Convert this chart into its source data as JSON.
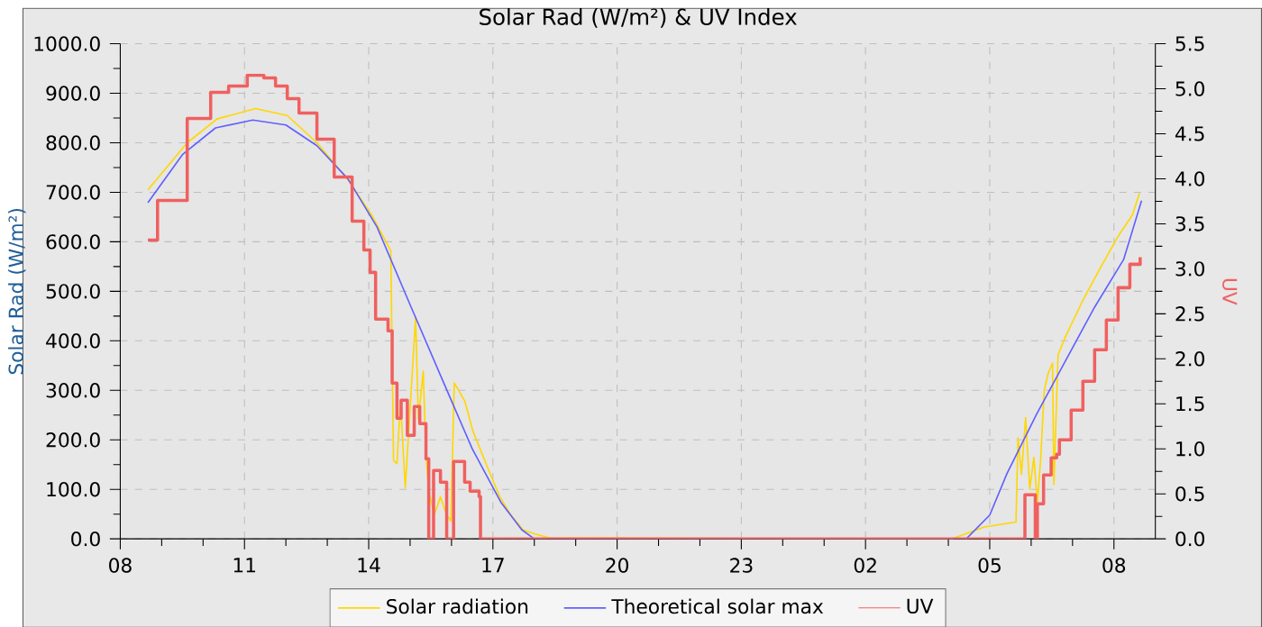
{
  "chart_data": {
    "type": "line",
    "title": "Solar Rad (W/m²) &  UV Index",
    "ylabel": "Solar Rad (W/m²)",
    "y2label": "UV",
    "xlim": [
      "--01-01T08:00",
      "--01-02T09:00"
    ],
    "xticks": [
      {
        "value": "--01-01T08:00",
        "label": "08"
      },
      {
        "value": "--01-01T11:00",
        "label": "11"
      },
      {
        "value": "--01-01T14:00",
        "label": "14"
      },
      {
        "value": "--01-01T17:00",
        "label": "17"
      },
      {
        "value": "--01-01T20:00",
        "label": "20"
      },
      {
        "value": "--01-01T23:00",
        "label": "23"
      },
      {
        "value": "--01-02T02:00",
        "label": "02"
      },
      {
        "value": "--01-02T05:00",
        "label": "05"
      },
      {
        "value": "--01-02T08:00",
        "label": "08"
      }
    ],
    "ylim": [
      0,
      1000
    ],
    "yticks": [
      {
        "value": 0,
        "label": "0.0"
      },
      {
        "value": 100,
        "label": "100.0"
      },
      {
        "value": 200,
        "label": "200.0"
      },
      {
        "value": 300,
        "label": "300.0"
      },
      {
        "value": 400,
        "label": "400.0"
      },
      {
        "value": 500,
        "label": "500.0"
      },
      {
        "value": 600,
        "label": "600.0"
      },
      {
        "value": 700,
        "label": "700.0"
      },
      {
        "value": 800,
        "label": "800.0"
      },
      {
        "value": 900,
        "label": "900.0"
      },
      {
        "value": 1000,
        "label": "1000.0"
      }
    ],
    "y2lim": [
      0,
      5.5
    ],
    "y2ticks": [
      {
        "value": 0,
        "label": "0.0"
      },
      {
        "value": 0.5,
        "label": "0.5"
      },
      {
        "value": 1,
        "label": "1.0"
      },
      {
        "value": 1.5,
        "label": "1.5"
      },
      {
        "value": 2,
        "label": "2.0"
      },
      {
        "value": 2.5,
        "label": "2.5"
      },
      {
        "value": 3,
        "label": "3.0"
      },
      {
        "value": 3.5,
        "label": "3.5"
      },
      {
        "value": 4,
        "label": "4.0"
      },
      {
        "value": 4.5,
        "label": "4.5"
      },
      {
        "value": 5,
        "label": "5.0"
      },
      {
        "value": 5.5,
        "label": "5.5"
      }
    ],
    "grid": true,
    "legend": "bottom",
    "series": [
      {
        "name": "Solar radiation",
        "color": "#ffd700",
        "x": [
          "--01-01T08:40",
          "--01-01T09:37",
          "--01-01T10:20",
          "--01-01T11:16",
          "--01-01T12:02",
          "--01-01T12:45",
          "--01-01T13:29",
          "--01-01T14:04",
          "--01-01T14:32",
          "--01-01T14:36",
          "--01-01T14:41",
          "--01-01T14:46",
          "--01-01T14:53",
          "--01-01T15:03",
          "--01-01T15:08",
          "--01-01T15:12",
          "--01-01T15:19",
          "--01-01T15:23",
          "--01-01T15:27",
          "--01-01T15:31",
          "--01-01T15:35",
          "--01-01T15:44",
          "--01-01T15:53",
          "--01-01T15:59",
          "--01-01T16:04",
          "--01-01T16:19",
          "--01-01T16:31",
          "--01-01T16:52",
          "--01-01T17:10",
          "--01-01T17:26",
          "--01-01T17:44",
          "--01-01T18:01",
          "--01-01T18:22",
          "--01-02T04:05",
          "--01-02T04:52",
          "--01-02T05:38",
          "--01-02T05:41",
          "--01-02T05:46",
          "--01-02T05:52",
          "--01-02T05:58",
          "--01-02T06:04",
          "--01-02T06:09",
          "--01-02T06:14",
          "--01-02T06:19",
          "--01-02T06:25",
          "--01-02T06:31",
          "--01-02T06:33",
          "--01-02T06:39",
          "--01-02T06:50",
          "--01-02T07:15",
          "--01-02T07:41",
          "--01-02T08:06",
          "--01-02T08:27",
          "--01-02T08:37"
        ],
        "values": [
          705,
          800,
          848,
          869,
          855,
          800,
          727,
          655,
          582,
          158,
          152,
          279,
          103,
          333,
          448,
          242,
          339,
          170,
          97,
          73,
          48,
          85,
          48,
          36,
          315,
          279,
          218,
          145,
          85,
          48,
          18,
          10,
          2,
          0,
          24,
          34,
          204,
          130,
          245,
          100,
          165,
          72,
          165,
          300,
          336,
          355,
          110,
          372,
          409,
          482,
          549,
          611,
          655,
          698
        ]
      },
      {
        "name": "Theoretical solar max",
        "color": "#6060ff",
        "x": [
          "--01-01T08:40",
          "--01-01T09:30",
          "--01-01T10:18",
          "--01-01T11:12",
          "--01-01T12:00",
          "--01-01T12:45",
          "--01-01T13:30",
          "--01-01T14:12",
          "--01-01T15:00",
          "--01-01T15:45",
          "--01-01T16:30",
          "--01-01T17:12",
          "--01-01T17:42",
          "--01-01T18:00",
          "--01-02T04:26",
          "--01-02T05:00",
          "--01-02T05:25",
          "--01-02T06:08",
          "--01-02T06:50",
          "--01-02T07:32",
          "--01-02T08:14",
          "--01-02T08:40"
        ],
        "values": [
          679,
          776,
          830,
          846,
          836,
          794,
          727,
          630,
          473,
          327,
          182,
          73,
          18,
          0,
          0,
          48,
          132,
          252,
          360,
          468,
          564,
          683
        ]
      },
      {
        "name": "UV",
        "type": "step",
        "axis": "y2",
        "color": "#f06060",
        "x": [
          "--01-01T08:40",
          "--01-01T08:54",
          "--01-01T09:37",
          "--01-01T10:11",
          "--01-01T10:37",
          "--01-01T11:04",
          "--01-01T11:28",
          "--01-01T11:45",
          "--01-01T12:02",
          "--01-01T12:19",
          "--01-01T12:45",
          "--01-01T13:10",
          "--01-01T13:36",
          "--01-01T13:53",
          "--01-01T14:02",
          "--01-01T14:10",
          "--01-01T14:28",
          "--01-01T14:34",
          "--01-01T14:41",
          "--01-01T14:47",
          "--01-01T14:56",
          "--01-01T15:06",
          "--01-01T15:14",
          "--01-01T15:23",
          "--01-01T15:27",
          "--01-01T15:34",
          "--01-01T15:44",
          "--01-01T15:53",
          "--01-01T15:59",
          "--01-01T16:03",
          "--01-01T16:19",
          "--01-01T16:27",
          "--01-01T16:40",
          "--01-01T16:42",
          "--01-02T05:49",
          "--01-02T05:51",
          "--01-02T06:06",
          "--01-02T06:09",
          "--01-02T06:18",
          "--01-02T06:29",
          "--01-02T06:37",
          "--01-02T06:41",
          "--01-02T06:58",
          "--01-02T07:15",
          "--01-02T07:32",
          "--01-02T07:49",
          "--01-02T08:06",
          "--01-02T08:23",
          "--01-02T08:38"
        ],
        "values": [
          3.32,
          3.76,
          4.67,
          4.96,
          5.03,
          5.15,
          5.12,
          5.03,
          4.89,
          4.73,
          4.44,
          4.02,
          3.53,
          3.21,
          2.96,
          2.44,
          2.31,
          1.73,
          1.34,
          1.54,
          1.15,
          1.47,
          1.28,
          0.89,
          0,
          0.76,
          0.63,
          0,
          0,
          0.86,
          0.63,
          0.53,
          0.47,
          0,
          0,
          0.49,
          0,
          0.39,
          0.71,
          0.9,
          0.94,
          1.1,
          1.43,
          1.75,
          2.1,
          2.43,
          2.79,
          3.05,
          3.13
        ]
      }
    ]
  }
}
